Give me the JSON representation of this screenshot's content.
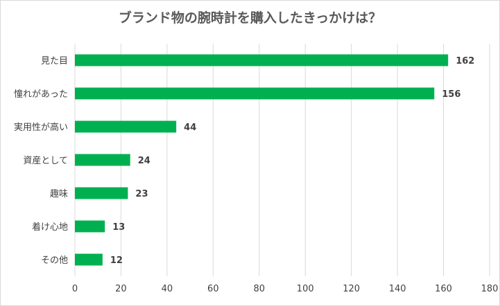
{
  "chart_data": {
    "type": "bar",
    "orientation": "horizontal",
    "title": "ブランド物の腕時計を購入したきっかけは？",
    "categories": [
      "見た目",
      "憧れがあった",
      "実用性が高い",
      "資産として",
      "趣味",
      "着け心地",
      "その他"
    ],
    "values": [
      162,
      156,
      44,
      24,
      23,
      13,
      12
    ],
    "xlim": [
      0,
      180
    ],
    "xticks": [
      "0",
      "20",
      "40",
      "60",
      "80",
      "100",
      "120",
      "140",
      "160",
      "180"
    ],
    "grid": true,
    "legend": "none",
    "bar_color": "#00b050"
  }
}
